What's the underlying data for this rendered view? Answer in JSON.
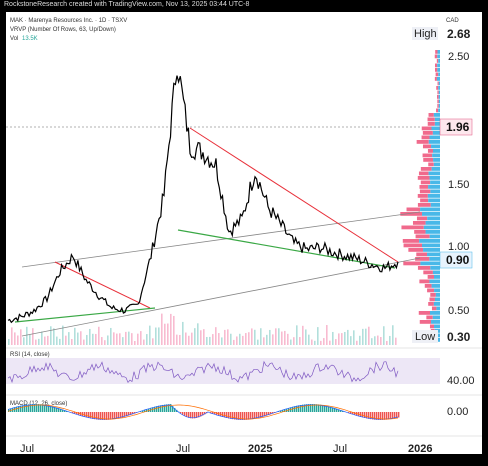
{
  "header": {
    "attribution": "RockstoneResearch created with TradingView.com, Nov 13, 2025 03:44 UTC-8",
    "symbol_line": "MAK · Marenya Resources Inc. · 1D · TSXV",
    "vrvp_line": "VRVP (Number Of Rows, 63, Up/Down)",
    "vol_label": "Vol",
    "vol_value": "13.5K",
    "currency": "CAD"
  },
  "price_axis": {
    "ticks": [
      "2.50",
      "1.50",
      "1.00",
      "0.50"
    ],
    "high_label": "High",
    "high_value": "2.68",
    "level_value": "1.96",
    "current_value": "0.90",
    "low_label": "Low",
    "low_value": "0.30"
  },
  "rsi": {
    "label": "RSI (14, close)",
    "value": "40.00"
  },
  "macd": {
    "label": "MACD (12, 26, close)",
    "value": "0.00"
  },
  "time_axis": [
    "Jul",
    "2024",
    "Jul",
    "2025",
    "Jul",
    "2026"
  ],
  "colors": {
    "price_line": "#000000",
    "resistance_line": "#e8303a",
    "support_line": "#3aa845",
    "channel_line": "#888888",
    "vp_up": "#49b8e8",
    "vp_down": "#f06a8c",
    "rsi_line": "#7e57c2",
    "macd_line": "#2962ff",
    "signal_line": "#ff6d00",
    "hist_up": "#26a69a",
    "hist_down": "#ef5350"
  },
  "chart_data": {
    "type": "line",
    "title": "MAK · Marenya Resources Inc. · 1D · TSXV",
    "xlabel": "",
    "ylabel": "CAD",
    "ylim": [
      0.3,
      2.68
    ],
    "x": [
      "2023-05",
      "2023-06",
      "2023-07",
      "2023-08",
      "2023-09",
      "2023-10",
      "2023-11",
      "2023-12",
      "2024-01",
      "2024-02",
      "2024-03",
      "2024-04",
      "2024-05",
      "2024-06",
      "2024-07",
      "2024-08",
      "2024-09",
      "2024-10",
      "2024-11",
      "2024-12",
      "2025-01",
      "2025-02",
      "2025-03",
      "2025-04",
      "2025-05",
      "2025-06",
      "2025-07",
      "2025-08",
      "2025-09",
      "2025-10",
      "2025-11"
    ],
    "series": [
      {
        "values": [
          0.42,
          0.45,
          0.5,
          0.6,
          0.82,
          0.95,
          0.75,
          0.62,
          0.52,
          0.5,
          0.55,
          0.95,
          1.45,
          2.55,
          1.85,
          1.8,
          1.7,
          1.15,
          1.25,
          1.65,
          1.35,
          1.2,
          1.05,
          1.0,
          1.02,
          0.98,
          0.95,
          0.92,
          0.88,
          0.85,
          0.9
        ]
      }
    ],
    "price_axis_labels": {
      "high": 2.68,
      "marked_level": 1.96,
      "last": 0.9,
      "low": 0.3
    }
  }
}
